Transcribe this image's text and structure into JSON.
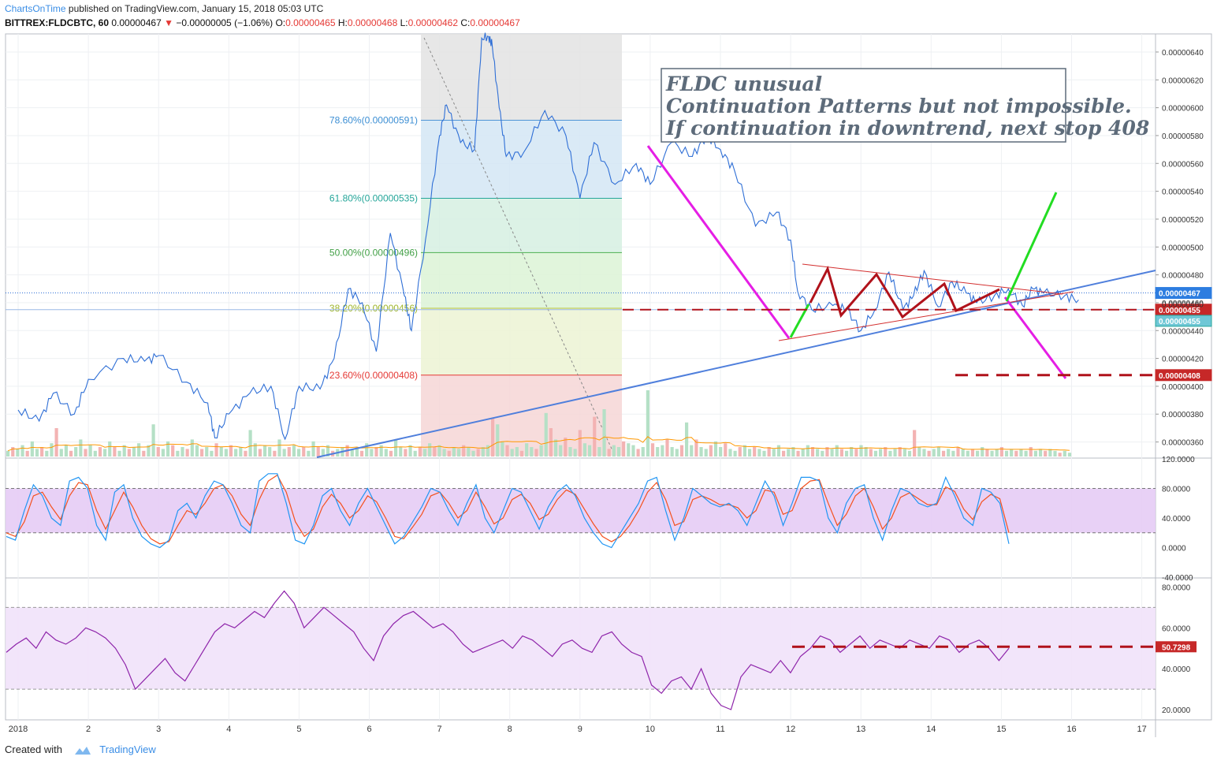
{
  "header": {
    "author": "ChartsOnTime",
    "published": "published on TradingView.com, January 15, 2018 05:03 UTC",
    "symbol": "BITTREX:FLDCBTC, 60",
    "last": "0.00000467",
    "arrow": "▼",
    "change": "−0.00000005 (−1.06%)",
    "o_label": "O:",
    "o": "0.00000465",
    "h_label": "H:",
    "h": "0.00000468",
    "l_label": "L:",
    "l": "0.00000462",
    "c_label": "C:",
    "c": "0.00000467"
  },
  "footer": {
    "created_with": "Created with",
    "brand": "TradingView"
  },
  "annotation": {
    "line1": "FLDC unusual",
    "line2": "Continuation Patterns but not impossible.",
    "line3": "If continuation in downtrend, next stop 408"
  },
  "colors": {
    "price_line": "#2f6fd6",
    "magenta": "#e51ee5",
    "green": "#22dd22",
    "dark_red": "#b0121b",
    "trend_blue": "#4f7fdc",
    "stoch_k": "#2196f3",
    "stoch_d": "#f4511e",
    "rsi": "#8e24aa",
    "red_label": "#c62828",
    "blue_label": "#2d7de0",
    "cyan_label": "#26a69a"
  },
  "chart_data": [
    {
      "type": "line",
      "title": "FLDCBTC, 60",
      "x_tick_labels": [
        "2018",
        "2",
        "3",
        "4",
        "5",
        "6",
        "7",
        "8",
        "9",
        "10",
        "11",
        "12",
        "13",
        "14",
        "15",
        "16",
        "17"
      ],
      "y_ticks": [
        "0.00000360",
        "0.00000380",
        "0.00000400",
        "0.00000420",
        "0.00000440",
        "0.00000460",
        "0.00000480",
        "0.00000500",
        "0.00000520",
        "0.00000540",
        "0.00000560",
        "0.00000580",
        "0.00000600",
        "0.00000620",
        "0.00000640"
      ],
      "ylim": [
        3.49e-06,
        6.53e-06
      ],
      "series": [
        {
          "x": [
            0.0,
            0.3,
            0.5,
            0.8,
            1.0,
            1.5,
            1.8,
            2.0,
            2.4,
            2.7,
            2.8,
            3.0,
            3.3,
            3.6,
            3.8,
            4.0,
            4.3,
            4.5,
            4.7,
            4.9,
            5.1,
            5.3,
            5.5,
            5.6,
            5.8,
            6.0,
            6.1,
            6.3,
            6.5,
            6.6,
            6.7,
            6.75,
            6.85,
            6.95,
            7.2,
            7.5,
            7.8,
            8.0,
            8.2,
            8.5,
            8.8,
            9.0,
            9.3,
            9.6,
            9.8,
            10.0,
            10.2,
            10.5,
            10.8,
            11.0,
            11.1,
            11.3,
            11.6,
            11.8,
            12.0,
            12.2,
            12.4,
            12.6,
            12.75,
            12.9,
            13.1,
            13.3,
            13.5,
            13.65,
            13.9,
            14.1,
            14.3,
            14.45,
            14.6,
            14.9,
            15.1
          ],
          "values": [
            383,
            375,
            395,
            380,
            405,
            420,
            418,
            422,
            403,
            388,
            363,
            380,
            395,
            400,
            362,
            400,
            398,
            420,
            470,
            460,
            425,
            510,
            465,
            440,
            505,
            580,
            602,
            575,
            570,
            650,
            651,
            645,
            600,
            565,
            568,
            598,
            580,
            535,
            575,
            545,
            560,
            545,
            575,
            565,
            580,
            570,
            555,
            515,
            525,
            505,
            468,
            455,
            458,
            455,
            440,
            455,
            482,
            455,
            465,
            483,
            457,
            475,
            467,
            460,
            465,
            470,
            458,
            470,
            467,
            465,
            462
          ]
        }
      ],
      "volume": [
        3,
        5,
        4,
        6,
        3,
        8,
        4,
        5,
        3,
        7,
        15,
        4,
        6,
        3,
        5,
        9,
        4,
        6,
        3,
        5,
        4,
        8,
        5,
        3,
        6,
        4,
        5,
        7,
        3,
        6,
        17,
        5,
        4,
        8,
        6,
        3,
        5,
        4,
        9,
        6,
        4,
        5,
        3,
        7,
        5,
        4,
        6,
        4,
        5,
        3,
        14,
        7,
        4,
        6,
        5,
        3,
        9,
        4,
        5,
        6,
        4,
        5,
        3,
        8,
        5,
        4,
        6,
        3,
        4,
        5,
        6,
        4,
        5,
        3,
        7,
        4,
        5,
        6,
        4,
        3,
        9,
        5,
        4,
        6,
        3,
        5,
        4,
        7,
        5,
        6,
        4,
        3,
        5,
        4,
        6,
        5,
        3,
        4,
        5,
        6,
        20,
        17,
        8,
        6,
        4,
        5,
        3,
        7,
        5,
        4,
        6,
        23,
        15,
        9,
        6,
        10,
        5,
        4,
        14,
        7,
        6,
        21,
        5,
        25,
        4,
        6,
        5,
        8,
        7,
        6,
        4,
        5,
        35,
        7,
        5,
        6,
        9,
        5,
        4,
        6,
        18,
        6,
        9,
        5,
        4,
        6,
        8,
        5,
        7,
        4,
        3,
        5,
        6,
        4,
        5,
        4,
        3,
        5,
        4,
        6,
        3,
        4,
        5,
        3,
        4,
        6,
        5,
        4,
        3,
        5,
        4,
        6,
        4,
        3,
        5,
        4,
        6,
        5,
        4,
        3,
        4,
        5,
        3,
        4,
        5,
        4,
        3,
        14,
        5,
        4,
        3,
        4,
        5,
        3,
        4,
        3,
        5,
        4,
        3,
        4,
        3,
        5,
        4,
        3,
        4,
        5,
        3,
        4,
        3,
        4,
        3,
        5,
        3,
        4,
        3,
        4,
        3,
        2,
        3,
        2
      ],
      "annotations": [
        {
          "text": "78.60%(0.00000591)",
          "y": 5.91e-06
        },
        {
          "text": "61.80%(0.00000535)",
          "y": 5.35e-06
        },
        {
          "text": "50.00%(0.00000496)",
          "y": 4.96e-06
        },
        {
          "text": "38.20%(0.00000456)",
          "y": 4.56e-06
        },
        {
          "text": "23.60%(0.00000408)",
          "y": 4.08e-06
        }
      ],
      "price_labels": [
        {
          "text": "0.00000467",
          "y": 4.67e-06
        },
        {
          "text": "0.00000455",
          "y": 4.55e-06
        },
        {
          "text": "0.00000455",
          "y": 4.47e-06
        },
        {
          "text": "0.00000408",
          "y": 4.08e-06
        }
      ],
      "overlap_tick": "0.00000460"
    },
    {
      "type": "line",
      "title": "Stoch RSI",
      "y_ticks": [
        "120.0000",
        "80.0000",
        "40.0000",
        "0.0000",
        "-40.0000"
      ],
      "ylim": [
        -40,
        120
      ],
      "series": [
        {
          "name": "K",
          "values": [
            15,
            10,
            50,
            85,
            70,
            40,
            30,
            90,
            95,
            80,
            30,
            10,
            75,
            85,
            40,
            15,
            5,
            0,
            10,
            50,
            60,
            40,
            70,
            90,
            85,
            60,
            30,
            20,
            90,
            100,
            100,
            60,
            10,
            5,
            30,
            70,
            80,
            50,
            30,
            60,
            80,
            55,
            30,
            5,
            15,
            35,
            55,
            80,
            75,
            50,
            30,
            60,
            85,
            40,
            20,
            50,
            80,
            75,
            50,
            25,
            55,
            75,
            85,
            70,
            40,
            20,
            5,
            0,
            20,
            40,
            60,
            90,
            95,
            50,
            10,
            40,
            80,
            70,
            60,
            55,
            60,
            50,
            30,
            60,
            90,
            70,
            30,
            60,
            95,
            95,
            90,
            40,
            20,
            60,
            80,
            85,
            40,
            10,
            50,
            80,
            75,
            60,
            55,
            60,
            95,
            70,
            40,
            30,
            80,
            75,
            60,
            5
          ]
        },
        {
          "name": "D",
          "values": [
            20,
            15,
            35,
            70,
            75,
            55,
            38,
            70,
            88,
            85,
            50,
            25,
            50,
            75,
            55,
            30,
            12,
            5,
            8,
            30,
            50,
            45,
            60,
            80,
            85,
            70,
            45,
            30,
            65,
            90,
            98,
            75,
            35,
            15,
            25,
            55,
            72,
            60,
            40,
            50,
            70,
            62,
            40,
            15,
            12,
            28,
            45,
            70,
            75,
            60,
            40,
            50,
            75,
            55,
            32,
            40,
            65,
            72,
            60,
            38,
            45,
            65,
            78,
            72,
            52,
            32,
            15,
            8,
            15,
            30,
            50,
            75,
            88,
            65,
            30,
            35,
            65,
            70,
            65,
            58,
            58,
            54,
            40,
            50,
            78,
            75,
            45,
            50,
            80,
            90,
            92,
            60,
            30,
            45,
            70,
            80,
            55,
            25,
            40,
            68,
            74,
            66,
            58,
            58,
            82,
            76,
            52,
            38,
            62,
            72,
            66,
            20
          ]
        }
      ]
    },
    {
      "type": "line",
      "title": "RSI",
      "y_ticks": [
        "80.0000",
        "60.0000",
        "40.0000",
        "20.0000"
      ],
      "ylim": [
        15,
        84
      ],
      "series": [
        {
          "name": "RSI",
          "values": [
            48,
            52,
            55,
            50,
            58,
            54,
            52,
            55,
            60,
            58,
            55,
            50,
            42,
            30,
            35,
            40,
            45,
            38,
            34,
            42,
            50,
            58,
            62,
            60,
            64,
            68,
            65,
            72,
            78,
            72,
            60,
            65,
            70,
            66,
            62,
            58,
            50,
            44,
            56,
            62,
            66,
            68,
            64,
            60,
            62,
            58,
            52,
            48,
            50,
            52,
            54,
            50,
            56,
            54,
            50,
            46,
            52,
            54,
            50,
            48,
            56,
            58,
            52,
            48,
            46,
            32,
            28,
            34,
            36,
            30,
            40,
            28,
            22,
            20,
            36,
            42,
            40,
            38,
            44,
            38,
            46,
            50,
            56,
            54,
            48,
            52,
            56,
            50,
            54,
            52,
            50,
            54,
            52,
            50,
            56,
            54,
            48,
            52,
            54,
            50,
            44,
            50
          ]
        },
        {
          "name": "level",
          "values": [
            50.7298
          ]
        }
      ],
      "price_labels": [
        {
          "text": "50.7298",
          "y": 50.7298
        }
      ]
    }
  ],
  "fib_zone_colors": [
    "#e3e3e3",
    "#d4e6f5",
    "#d6f0e2",
    "#dcf3d6",
    "#ecf3d4",
    "#f6d6d6"
  ]
}
